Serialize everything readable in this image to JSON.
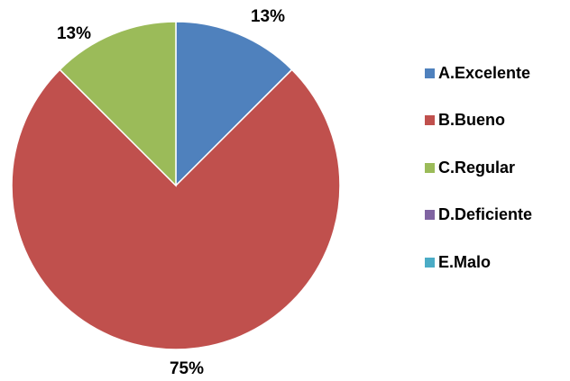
{
  "chart_data": {
    "type": "pie",
    "title": "",
    "categories": [
      "A.Excelente",
      "B.Bueno",
      "C.Regular",
      "D.Deficiente",
      "E.Malo"
    ],
    "values": [
      12.5,
      75,
      12.5,
      0,
      0
    ],
    "data_labels": [
      "13%",
      "75%",
      "13%",
      "",
      ""
    ],
    "colors": [
      "#4F81BD",
      "#C0504D",
      "#9BBB59",
      "#8064A2",
      "#4BACC6"
    ],
    "start_angle_deg": 0,
    "direction": "clockwise",
    "legend_position": "right"
  },
  "legend": {
    "items": [
      {
        "label": "A.Excelente",
        "color": "#4F81BD"
      },
      {
        "label": "B.Bueno",
        "color": "#C0504D"
      },
      {
        "label": "C.Regular",
        "color": "#9BBB59"
      },
      {
        "label": "D.Deficiente",
        "color": "#8064A2"
      },
      {
        "label": "E.Malo",
        "color": "#4BACC6"
      }
    ]
  }
}
